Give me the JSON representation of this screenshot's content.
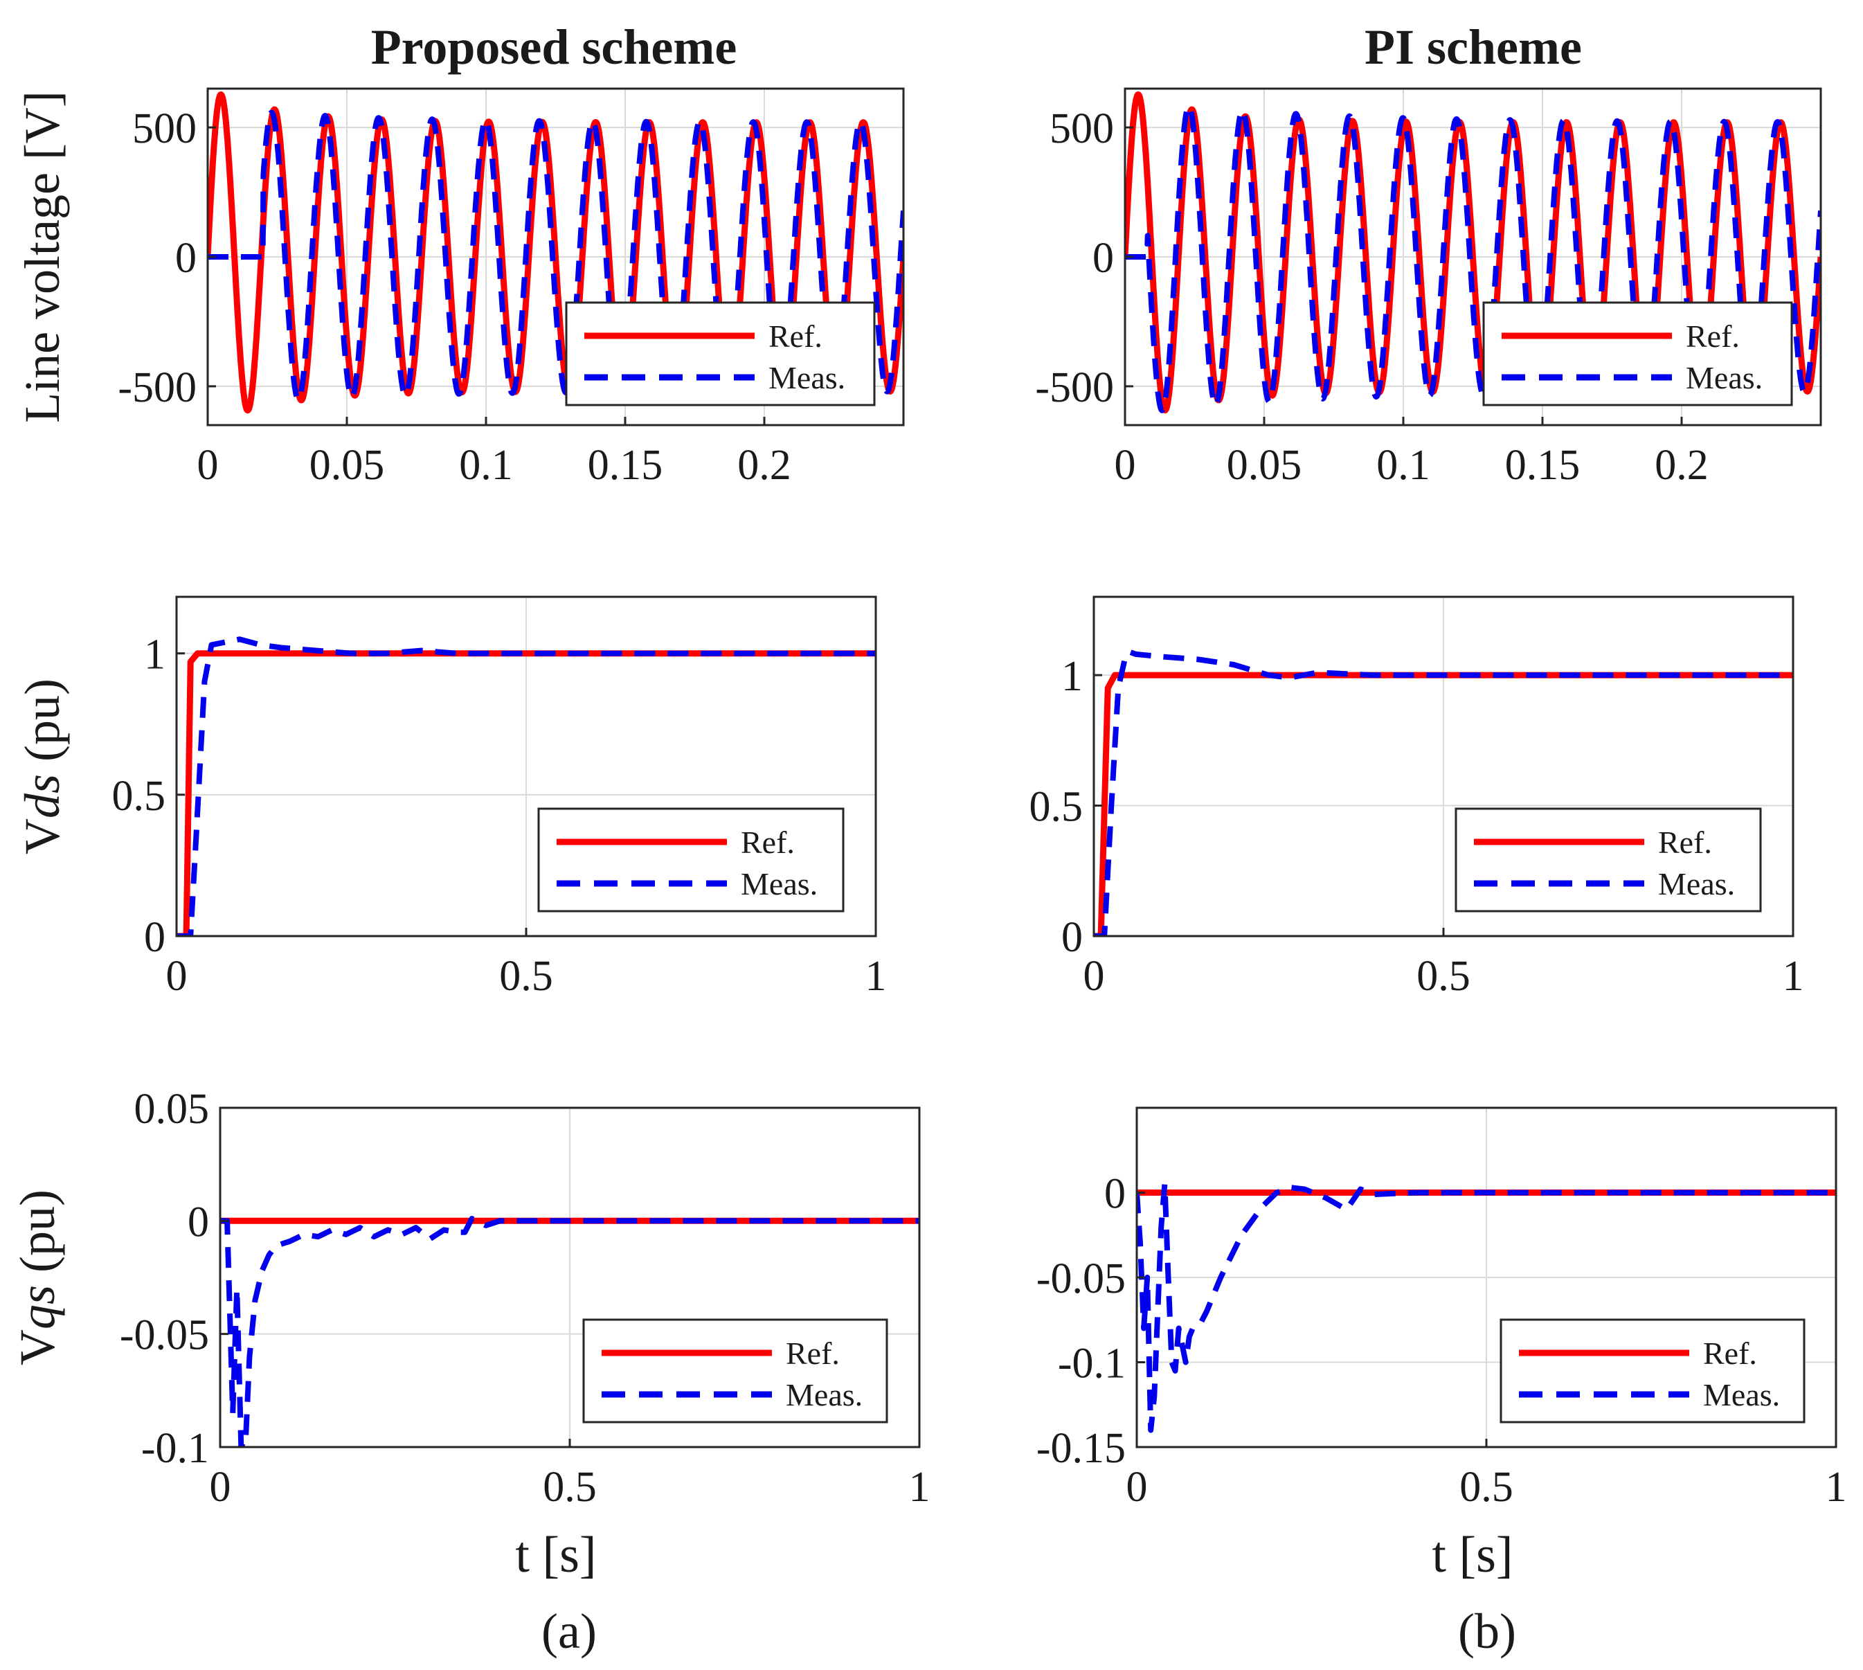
{
  "figure": {
    "columns": [
      {
        "title": "Proposed scheme",
        "caption": "(a)"
      },
      {
        "title": "PI scheme",
        "caption": "(b)"
      }
    ]
  },
  "colors": {
    "ref": "#ff0000",
    "meas": "#0000ee",
    "grid": "#d9d9d9",
    "axis": "#262626"
  },
  "chart_data": [
    {
      "id": "a-line-voltage",
      "type": "line",
      "column": "Proposed scheme",
      "ylabel": "Line voltage [V]",
      "xlabel": "",
      "xlim": [
        0,
        0.25
      ],
      "ylim": [
        -650,
        650
      ],
      "xticks": [
        0,
        0.05,
        0.1,
        0.15,
        0.2
      ],
      "xticklabels": [
        "0",
        "0.05",
        "0.1",
        "0.15",
        "0.2"
      ],
      "yticks": [
        -500,
        0,
        500
      ],
      "yticklabels": [
        "-500",
        "0",
        "500"
      ],
      "legend": [
        "Ref.",
        "Meas."
      ],
      "series": [
        {
          "name": "Ref.",
          "style": "solid",
          "model": "sine",
          "freq_hz": 52,
          "peak_start": 650,
          "peak_end": 520,
          "decay_s": 0.025,
          "meas_delay_s": 0
        },
        {
          "name": "Meas.",
          "style": "dashed",
          "model": "sine",
          "freq_hz": 52,
          "peak_start": 560,
          "peak_end": 520,
          "decay_s": 0.05,
          "start_s": 0.02
        }
      ]
    },
    {
      "id": "b-line-voltage",
      "type": "line",
      "column": "PI scheme",
      "ylabel": "",
      "xlabel": "",
      "xlim": [
        0,
        0.25
      ],
      "ylim": [
        -650,
        650
      ],
      "xticks": [
        0,
        0.05,
        0.1,
        0.15,
        0.2
      ],
      "xticklabels": [
        "0",
        "0.05",
        "0.1",
        "0.15",
        "0.2"
      ],
      "yticks": [
        -500,
        0,
        500
      ],
      "yticklabels": [
        "-500",
        "0",
        "500"
      ],
      "legend": [
        "Ref.",
        "Meas."
      ],
      "series": [
        {
          "name": "Ref.",
          "style": "solid",
          "model": "sine",
          "freq_hz": 52,
          "peak_start": 650,
          "peak_end": 520,
          "decay_s": 0.025
        },
        {
          "name": "Meas.",
          "style": "dashed",
          "model": "sine",
          "freq_hz": 52,
          "peak_start": 600,
          "peak_end": 520,
          "decay_s": 0.06,
          "start_s": 0.008
        }
      ]
    },
    {
      "id": "a-vds",
      "type": "line",
      "column": "Proposed scheme",
      "ylabel": "Vds (pu)",
      "xlabel": "",
      "xlim": [
        0,
        1
      ],
      "ylim": [
        0,
        1.2
      ],
      "xticks": [
        0,
        0.5,
        1
      ],
      "xticklabels": [
        "0",
        "0.5",
        "1"
      ],
      "yticks": [
        0,
        0.5,
        1
      ],
      "yticklabels": [
        "0",
        "0.5",
        "1"
      ],
      "legend": [
        "Ref.",
        "Meas."
      ],
      "series": [
        {
          "name": "Ref.",
          "style": "solid",
          "x": [
            0,
            0.014,
            0.02,
            0.03,
            1
          ],
          "y": [
            0,
            0,
            0.97,
            1.0,
            1.0
          ]
        },
        {
          "name": "Meas.",
          "style": "dashed",
          "x": [
            0,
            0.02,
            0.028,
            0.04,
            0.05,
            0.09,
            0.12,
            0.15,
            0.2,
            0.25,
            0.3,
            0.35,
            0.4,
            1
          ],
          "y": [
            0,
            0,
            0.35,
            0.9,
            1.03,
            1.05,
            1.03,
            1.02,
            1.01,
            1.0,
            1.0,
            1.01,
            1.0,
            1.0
          ]
        }
      ]
    },
    {
      "id": "b-vds",
      "type": "line",
      "column": "PI scheme",
      "ylabel": "",
      "xlabel": "",
      "xlim": [
        0,
        1
      ],
      "ylim": [
        0,
        1.3
      ],
      "xticks": [
        0,
        0.5,
        1
      ],
      "xticklabels": [
        "0",
        "0.5",
        "1"
      ],
      "yticks": [
        0,
        0.5,
        1
      ],
      "yticklabels": [
        "0",
        "0.5",
        "1"
      ],
      "legend": [
        "Ref.",
        "Meas."
      ],
      "series": [
        {
          "name": "Ref.",
          "style": "solid",
          "x": [
            0,
            0.01,
            0.02,
            0.03,
            1
          ],
          "y": [
            0,
            0,
            0.95,
            1.0,
            1.0
          ]
        },
        {
          "name": "Meas.",
          "style": "dashed",
          "x": [
            0,
            0.015,
            0.025,
            0.035,
            0.045,
            0.05,
            0.06,
            0.1,
            0.15,
            0.2,
            0.25,
            0.28,
            0.32,
            0.4,
            1
          ],
          "y": [
            0,
            0,
            0.5,
            0.95,
            1.07,
            1.09,
            1.08,
            1.07,
            1.06,
            1.04,
            1.0,
            0.99,
            1.01,
            1.0,
            1.0
          ]
        }
      ]
    },
    {
      "id": "a-vqs",
      "type": "line",
      "column": "Proposed scheme",
      "ylabel": "Vqs (pu)",
      "xlabel": "t  [s]",
      "xlim": [
        0,
        1
      ],
      "ylim": [
        -0.1,
        0.05
      ],
      "xticks": [
        0,
        0.5,
        1
      ],
      "xticklabels": [
        "0",
        "0.5",
        "1"
      ],
      "yticks": [
        -0.1,
        -0.05,
        0,
        0.05
      ],
      "yticklabels": [
        "-0.1",
        "-0.05",
        "0",
        "0.05"
      ],
      "legend": [
        "Ref.",
        "Meas."
      ],
      "series": [
        {
          "name": "Ref.",
          "style": "solid",
          "x": [
            0,
            1
          ],
          "y": [
            0,
            0
          ]
        },
        {
          "name": "Meas.",
          "style": "dashed",
          "x": [
            0,
            0.01,
            0.018,
            0.024,
            0.03,
            0.036,
            0.042,
            0.05,
            0.06,
            0.07,
            0.08,
            0.1,
            0.12,
            0.14,
            0.16,
            0.18,
            0.2,
            0.22,
            0.24,
            0.26,
            0.28,
            0.3,
            0.32,
            0.34,
            0.35,
            0.36,
            0.38,
            0.4,
            0.43,
            1
          ],
          "y": [
            0,
            0,
            -0.085,
            -0.03,
            -0.1,
            -0.1,
            -0.06,
            -0.035,
            -0.022,
            -0.015,
            -0.011,
            -0.009,
            -0.006,
            -0.007,
            -0.004,
            -0.006,
            -0.003,
            -0.007,
            -0.004,
            -0.006,
            -0.003,
            -0.008,
            -0.004,
            -0.005,
            -0.005,
            0.001,
            -0.002,
            0.0,
            0.0,
            0.0
          ]
        }
      ]
    },
    {
      "id": "b-vqs",
      "type": "line",
      "column": "PI scheme",
      "ylabel": "",
      "xlabel": "t  [s]",
      "xlim": [
        0,
        1
      ],
      "ylim": [
        -0.15,
        0.05
      ],
      "xticks": [
        0,
        0.5,
        1
      ],
      "xticklabels": [
        "0",
        "0.5",
        "1"
      ],
      "yticks": [
        -0.15,
        -0.1,
        -0.05,
        0
      ],
      "yticklabels": [
        "-0.15",
        "-0.1",
        "-0.05",
        "0"
      ],
      "legend": [
        "Ref.",
        "Meas."
      ],
      "series": [
        {
          "name": "Ref.",
          "style": "solid",
          "x": [
            0,
            1
          ],
          "y": [
            0,
            0
          ]
        },
        {
          "name": "Meas.",
          "style": "dashed",
          "x": [
            0,
            0.005,
            0.01,
            0.015,
            0.02,
            0.025,
            0.03,
            0.035,
            0.04,
            0.045,
            0.05,
            0.055,
            0.06,
            0.065,
            0.07,
            0.075,
            0.08,
            0.09,
            0.1,
            0.12,
            0.15,
            0.18,
            0.2,
            0.22,
            0.24,
            0.27,
            0.3,
            0.32,
            0.34,
            0.4,
            1
          ],
          "y": [
            0,
            -0.03,
            -0.08,
            -0.05,
            -0.14,
            -0.12,
            -0.07,
            -0.02,
            0.005,
            -0.05,
            -0.1,
            -0.105,
            -0.08,
            -0.09,
            -0.1,
            -0.085,
            -0.08,
            -0.078,
            -0.07,
            -0.05,
            -0.025,
            -0.008,
            0.0,
            0.003,
            0.002,
            -0.003,
            -0.01,
            0.002,
            -0.001,
            0.0,
            0.0
          ]
        }
      ]
    }
  ]
}
